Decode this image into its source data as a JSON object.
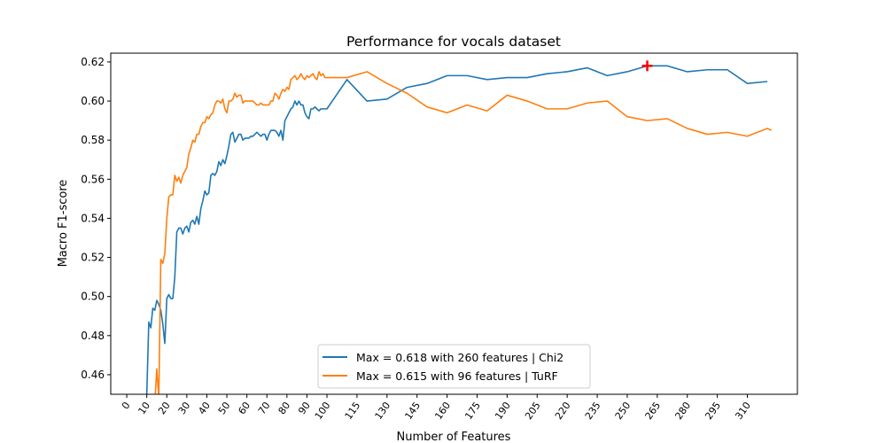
{
  "chart_data": {
    "type": "line",
    "title": "Performance for vocals dataset",
    "xlabel": "Number of Features",
    "ylabel": "Macro F1-score",
    "xlim": [
      -8,
      335
    ],
    "ylim": [
      0.45,
      0.6245
    ],
    "xticks": [
      0,
      10,
      20,
      30,
      40,
      50,
      60,
      70,
      80,
      90,
      100,
      115,
      130,
      145,
      160,
      175,
      190,
      205,
      220,
      235,
      250,
      265,
      280,
      295,
      310
    ],
    "yticks": [
      0.46,
      0.48,
      0.5,
      0.52,
      0.54,
      0.56,
      0.58,
      0.6,
      0.62
    ],
    "ytick_labels": [
      "0.46",
      "0.48",
      "0.50",
      "0.52",
      "0.54",
      "0.56",
      "0.58",
      "0.60",
      "0.62"
    ],
    "grid": false,
    "legend_position": "bottom-center",
    "series": [
      {
        "name": "Max = 0.618 with 260 features | Chi2",
        "color": "#1f77b4",
        "x": [
          9,
          10,
          11,
          12,
          13,
          14,
          15,
          16,
          17,
          18,
          19,
          20,
          21,
          22,
          23,
          24,
          25,
          26,
          27,
          28,
          29,
          30,
          31,
          32,
          33,
          34,
          35,
          36,
          37,
          38,
          39,
          40,
          41,
          42,
          43,
          44,
          45,
          46,
          47,
          48,
          49,
          50,
          51,
          52,
          53,
          54,
          55,
          56,
          57,
          58,
          59,
          60,
          61,
          62,
          63,
          64,
          65,
          66,
          67,
          68,
          69,
          70,
          71,
          72,
          73,
          74,
          75,
          76,
          77,
          78,
          79,
          80,
          81,
          82,
          83,
          84,
          85,
          86,
          87,
          88,
          89,
          90,
          91,
          92,
          93,
          94,
          95,
          96,
          97,
          98,
          99,
          100,
          110,
          120,
          130,
          140,
          150,
          160,
          170,
          180,
          190,
          200,
          210,
          220,
          230,
          240,
          250,
          260,
          270,
          280,
          290,
          300,
          310,
          320
        ],
        "values": [
          0.44,
          0.45,
          0.487,
          0.484,
          0.494,
          0.493,
          0.498,
          0.496,
          0.493,
          0.486,
          0.476,
          0.499,
          0.501,
          0.499,
          0.499,
          0.51,
          0.533,
          0.535,
          0.535,
          0.532,
          0.535,
          0.536,
          0.533,
          0.538,
          0.539,
          0.537,
          0.541,
          0.537,
          0.545,
          0.549,
          0.554,
          0.552,
          0.553,
          0.562,
          0.563,
          0.562,
          0.564,
          0.569,
          0.567,
          0.57,
          0.568,
          0.572,
          0.577,
          0.583,
          0.584,
          0.579,
          0.581,
          0.583,
          0.583,
          0.58,
          0.581,
          0.581,
          0.581,
          0.582,
          0.582,
          0.583,
          0.584,
          0.583,
          0.582,
          0.583,
          0.583,
          0.58,
          0.583,
          0.585,
          0.585,
          0.585,
          0.584,
          0.582,
          0.585,
          0.58,
          0.59,
          0.592,
          0.594,
          0.596,
          0.597,
          0.6,
          0.598,
          0.6,
          0.598,
          0.598,
          0.594,
          0.592,
          0.591,
          0.596,
          0.596,
          0.597,
          0.596,
          0.595,
          0.596,
          0.596,
          0.596,
          0.596,
          0.611,
          0.6,
          0.601,
          0.607,
          0.609,
          0.613,
          0.613,
          0.611,
          0.612,
          0.612,
          0.614,
          0.615,
          0.617,
          0.613,
          0.615,
          0.618,
          0.618,
          0.615,
          0.616,
          0.616,
          0.609,
          0.61
        ]
      },
      {
        "name": "Max = 0.615 with 96 features | TuRF",
        "color": "#ff7f0e",
        "x": [
          14,
          15,
          16,
          17,
          18,
          19,
          20,
          21,
          22,
          23,
          24,
          25,
          26,
          27,
          28,
          29,
          30,
          31,
          32,
          33,
          34,
          35,
          36,
          37,
          38,
          39,
          40,
          41,
          42,
          43,
          44,
          45,
          46,
          47,
          48,
          49,
          50,
          51,
          52,
          53,
          54,
          55,
          56,
          57,
          58,
          59,
          60,
          61,
          62,
          63,
          64,
          65,
          66,
          67,
          68,
          69,
          70,
          71,
          72,
          73,
          74,
          75,
          76,
          77,
          78,
          79,
          80,
          81,
          82,
          83,
          84,
          85,
          86,
          87,
          88,
          89,
          90,
          91,
          92,
          93,
          94,
          95,
          96,
          97,
          98,
          99,
          100,
          110,
          120,
          130,
          140,
          150,
          160,
          170,
          180,
          190,
          200,
          210,
          220,
          230,
          240,
          250,
          260,
          270,
          280,
          290,
          300,
          310,
          320,
          322
        ],
        "values": [
          0.445,
          0.463,
          0.448,
          0.519,
          0.517,
          0.522,
          0.54,
          0.551,
          0.552,
          0.552,
          0.562,
          0.559,
          0.561,
          0.558,
          0.562,
          0.564,
          0.566,
          0.573,
          0.576,
          0.58,
          0.579,
          0.583,
          0.583,
          0.587,
          0.589,
          0.589,
          0.592,
          0.591,
          0.593,
          0.594,
          0.598,
          0.6,
          0.6,
          0.599,
          0.601,
          0.596,
          0.594,
          0.6,
          0.6,
          0.601,
          0.604,
          0.602,
          0.603,
          0.603,
          0.599,
          0.6,
          0.6,
          0.6,
          0.6,
          0.6,
          0.599,
          0.598,
          0.598,
          0.599,
          0.598,
          0.598,
          0.598,
          0.598,
          0.6,
          0.6,
          0.604,
          0.603,
          0.601,
          0.604,
          0.606,
          0.605,
          0.607,
          0.606,
          0.611,
          0.612,
          0.613,
          0.611,
          0.612,
          0.614,
          0.612,
          0.611,
          0.613,
          0.612,
          0.613,
          0.614,
          0.612,
          0.611,
          0.615,
          0.613,
          0.614,
          0.612,
          0.612,
          0.612,
          0.615,
          0.609,
          0.604,
          0.597,
          0.594,
          0.598,
          0.595,
          0.603,
          0.6,
          0.596,
          0.596,
          0.599,
          0.6,
          0.592,
          0.59,
          0.591,
          0.586,
          0.583,
          0.584,
          0.582,
          0.586,
          0.585
        ]
      }
    ],
    "annotations": [
      {
        "type": "marker",
        "symbol": "+",
        "color": "#ff0000",
        "x": 260,
        "y": 0.618
      }
    ]
  }
}
